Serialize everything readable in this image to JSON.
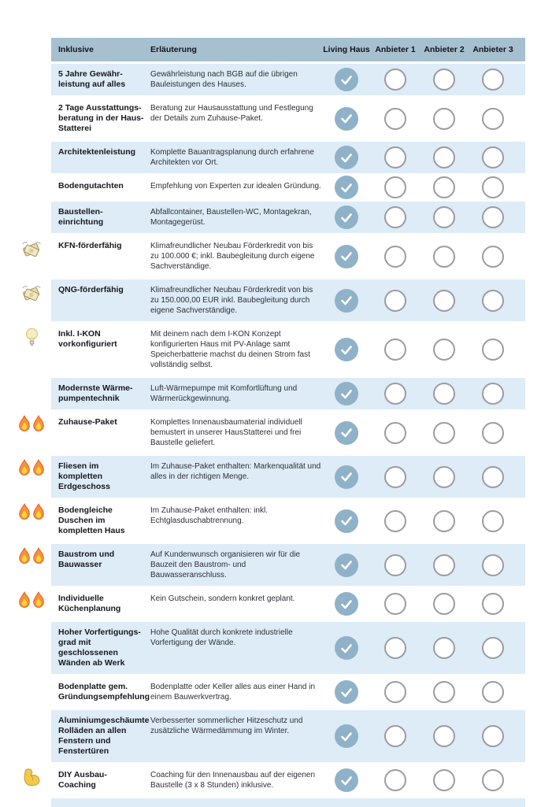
{
  "table": {
    "header": {
      "feature": "Inklusive",
      "description": "Erläuterung",
      "providers": [
        "Living Haus",
        "Anbieter 1",
        "Anbieter 2",
        "Anbieter 3"
      ]
    },
    "rows": [
      {
        "icon": "",
        "name": "5 Jahre Gewähr-leistung auf alles",
        "desc": "Gewährleistung nach BGB auf die übrigen Bauleistungen des Hauses.",
        "checks": [
          true,
          false,
          false,
          false
        ]
      },
      {
        "icon": "",
        "name": "2 Tage Ausstattungs-beratung in der Haus-Statterei",
        "desc": "Beratung zur Hausausstattung und Festlegung der Details zum Zuhause-Paket.",
        "checks": [
          true,
          false,
          false,
          false
        ]
      },
      {
        "icon": "",
        "name": "Architektenleistung",
        "desc": "Komplette Bauantragsplanung durch erfahrene Architekten vor Ort.",
        "checks": [
          true,
          false,
          false,
          false
        ]
      },
      {
        "icon": "",
        "name": "Bodengutachten",
        "desc": "Empfehlung von Experten zur idealen Gründung.",
        "checks": [
          true,
          false,
          false,
          false
        ]
      },
      {
        "icon": "",
        "name": "Baustellen-einrichtung",
        "desc": "Abfallcontainer, Baustellen-WC, Montagekran, Montagegerüst.",
        "checks": [
          true,
          false,
          false,
          false
        ]
      },
      {
        "icon": "money-wings-icon",
        "name": "KFN-förderfähig",
        "desc": "Klimafreundlicher Neubau Förderkredit von bis zu 100.000 €; inkl. Baubegleitung durch eigene Sachverständige.",
        "checks": [
          true,
          false,
          false,
          false
        ]
      },
      {
        "icon": "money-wings-icon",
        "name": "QNG-förderfähig",
        "desc": "Klimafreundlicher Neubau Förderkredit von bis zu 150.000,00 EUR inkl. Baubegleitung durch eigene Sachverständige.",
        "checks": [
          true,
          false,
          false,
          false
        ]
      },
      {
        "icon": "light-bulb-icon",
        "name": "Inkl. I-KON vorkonfiguriert",
        "desc": "Mit deinem nach dem I-KON Konzept konfigurierten Haus mit PV-Anlage samt Speicherbatterie machst du deinen Strom fast vollständig selbst.",
        "checks": [
          true,
          false,
          false,
          false
        ]
      },
      {
        "icon": "",
        "name": "Modernste Wärme-pumpentechnik",
        "desc": "Luft-Wärmepumpe mit Komfortlüftung und Wärmerückgewinnung.",
        "checks": [
          true,
          false,
          false,
          false
        ]
      },
      {
        "icon": "double-fire-icon",
        "name": "Zuhause-Paket",
        "desc": "Komplettes Innenausbaumaterial individuell bemustert in unserer HausStatterei und frei Baustelle geliefert.",
        "checks": [
          true,
          false,
          false,
          false
        ]
      },
      {
        "icon": "double-fire-icon",
        "name": "Fliesen im kompletten Erdgeschoss",
        "desc": "Im Zuhause-Paket enthalten: Markenqualität und alles in der richtigen Menge.",
        "checks": [
          true,
          false,
          false,
          false
        ]
      },
      {
        "icon": "double-fire-icon",
        "name": "Bodengleiche Duschen im kompletten Haus",
        "desc": "Im Zuhause-Paket enthalten: inkl. Echtglasduschabtrennung.",
        "checks": [
          true,
          false,
          false,
          false
        ]
      },
      {
        "icon": "double-fire-icon",
        "name": "Baustrom und Bauwasser",
        "desc": "Auf Kundenwunsch organisieren wir für die Bauzeit den Baustrom- und Bauwasseranschluss.",
        "checks": [
          true,
          false,
          false,
          false
        ]
      },
      {
        "icon": "double-fire-icon",
        "name": "Individuelle Küchenplanung",
        "desc": "Kein Gutschein, sondern konkret geplant.",
        "checks": [
          true,
          false,
          false,
          false
        ]
      },
      {
        "icon": "",
        "name": "Hoher Vorfertigungs-grad mit geschlossenen Wänden ab Werk",
        "desc": "Hohe Qualität durch konkrete industrielle Vorfertigung der Wände.",
        "checks": [
          true,
          false,
          false,
          false
        ]
      },
      {
        "icon": "",
        "name": "Bodenplatte gem. Gründungsempfehlung",
        "desc": "Bodenplatte oder Keller alles aus einer Hand in einem Bauwerkvertrag.",
        "checks": [
          true,
          false,
          false,
          false
        ]
      },
      {
        "icon": "",
        "name": "Aluminiumgeschäumte Rolläden an allen Fens­tern und Fenstertüren",
        "desc": "Verbesserter sommerlicher Hitzeschutz und zusätzliche Wärmedämmung im Winter.",
        "checks": [
          true,
          false,
          false,
          false
        ]
      },
      {
        "icon": "flexed-biceps-icon",
        "name": "DIY Ausbau-Coaching",
        "desc": "Coaching für den Innenausbau auf der eigenen Baustelle (3 x 8 Stunden) inklusive.",
        "checks": [
          true,
          false,
          false,
          false
        ]
      }
    ]
  },
  "colors": {
    "header_bg": "#a6c0cf",
    "row_blue": "#ddecf7",
    "check_fill": "#8fb2c9",
    "circle_border": "#9b9ba1",
    "text_dark": "#17171f",
    "text_body": "#2f2f36"
  }
}
